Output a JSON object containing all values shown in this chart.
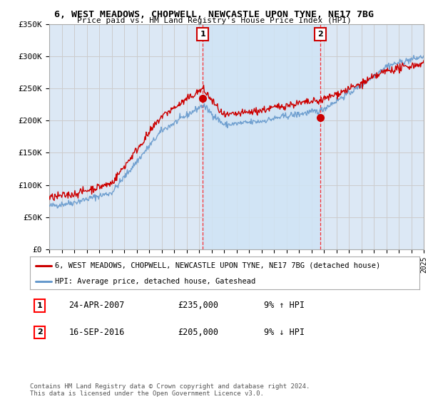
{
  "title": "6, WEST MEADOWS, CHOPWELL, NEWCASTLE UPON TYNE, NE17 7BG",
  "subtitle": "Price paid vs. HM Land Registry's House Price Index (HPI)",
  "ylim": [
    0,
    350000
  ],
  "yticks": [
    0,
    50000,
    100000,
    150000,
    200000,
    250000,
    300000,
    350000
  ],
  "ytick_labels": [
    "£0",
    "£50K",
    "£100K",
    "£150K",
    "£200K",
    "£250K",
    "£300K",
    "£350K"
  ],
  "background_color": "#ffffff",
  "plot_background": "#dce8f5",
  "grid_color": "#cccccc",
  "shade_color": "#ccddf0",
  "red_line_color": "#cc0000",
  "blue_line_color": "#6699cc",
  "transaction1_x": 2007.3,
  "transaction1_y": 235000,
  "transaction2_x": 2016.72,
  "transaction2_y": 205000,
  "legend_label1": "6, WEST MEADOWS, CHOPWELL, NEWCASTLE UPON TYNE, NE17 7BG (detached house)",
  "legend_label2": "HPI: Average price, detached house, Gateshead",
  "transaction1_date": "24-APR-2007",
  "transaction1_price": "£235,000",
  "transaction1_hpi": "9% ↑ HPI",
  "transaction2_date": "16-SEP-2016",
  "transaction2_price": "£205,000",
  "transaction2_hpi": "9% ↓ HPI",
  "footnote": "Contains HM Land Registry data © Crown copyright and database right 2024.\nThis data is licensed under the Open Government Licence v3.0.",
  "xmin": 1995,
  "xmax": 2025
}
